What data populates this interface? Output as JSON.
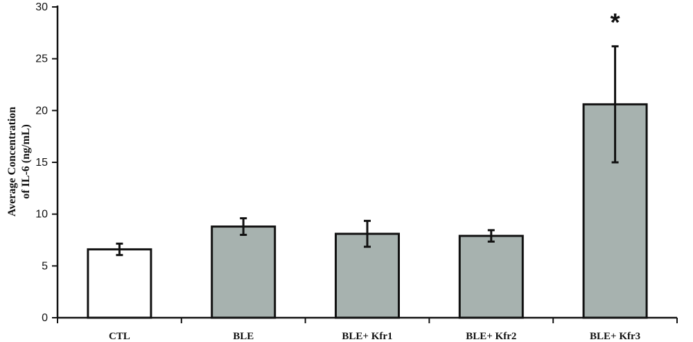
{
  "chart_data": {
    "type": "bar",
    "title": "",
    "xlabel": "",
    "ylabel": [
      "Average Concentration",
      "of IL-6 (ng/mL)"
    ],
    "ylim": [
      0,
      30
    ],
    "yticks": [
      "0",
      "5",
      "10",
      "15",
      "20",
      "25",
      "30"
    ],
    "categories": [
      "CTL",
      "BLE",
      "BLE+ Kfr1",
      "BLE+ Kfr2",
      "BLE+ Kfr3"
    ],
    "values": [
      6.6,
      8.8,
      8.1,
      7.9,
      20.6
    ],
    "errors": [
      0.55,
      0.8,
      1.25,
      0.55,
      5.6
    ],
    "bar_colors": [
      "#ffffff",
      "#a7b2af",
      "#a7b2af",
      "#a7b2af",
      "#a7b2af"
    ],
    "annotations": [
      {
        "category": "BLE+ Kfr3",
        "text": "*"
      }
    ],
    "grid": false,
    "legend": "none"
  }
}
